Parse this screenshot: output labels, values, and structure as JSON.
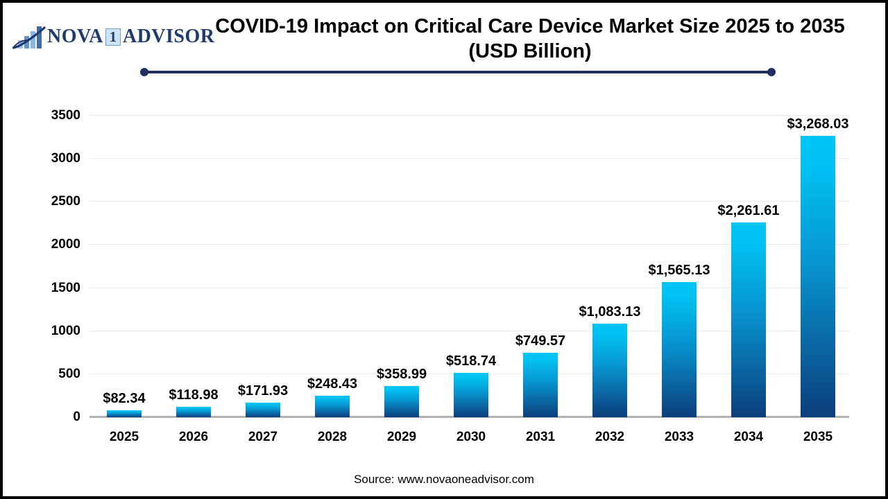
{
  "logo": {
    "icon_name": "bar-chart-swoosh-icon",
    "word1": "NOVA",
    "one_box": "1",
    "word2": "ADVISOR",
    "navy_color": "#1e3a6e",
    "box_bg_color": "#cfe3f6",
    "box_border_color": "#6f9fd0"
  },
  "header": {
    "title": "COVID-19 Impact on Critical Care Device Market Size 2025 to 2035",
    "subtitle": "(USD Billion)",
    "divider_color": "#1f2f5f"
  },
  "chart_data": {
    "type": "bar",
    "title": "COVID-19 Impact on Critical Care Device Market Size 2025 to 2035 (USD Billion)",
    "categories": [
      "2025",
      "2026",
      "2027",
      "2028",
      "2029",
      "2030",
      "2031",
      "2032",
      "2033",
      "2034",
      "2035"
    ],
    "values": [
      82.34,
      118.98,
      171.93,
      248.43,
      358.99,
      518.74,
      749.57,
      1083.13,
      1565.13,
      2261.61,
      3268.03
    ],
    "value_labels": [
      "$82.34",
      "$118.98",
      "$171.93",
      "$248.43",
      "$358.99",
      "$518.74",
      "$749.57",
      "$1,083.13",
      "$1,565.13",
      "$2,261.61",
      "$3,268.03"
    ],
    "xlabel": "",
    "ylabel": "",
    "ylim": [
      0,
      3500
    ],
    "yticks": [
      0,
      500,
      1000,
      1500,
      2000,
      2500,
      3000,
      3500
    ],
    "grid": "horizontal",
    "legend": "none",
    "bar_color_top": "#00c2f3",
    "bar_color_bottom": "#0c3e7c",
    "gridline_color": "#ececec",
    "baseline_color": "#b3b3b3"
  },
  "footer": {
    "source": "Source: www.novaoneadvisor.com"
  }
}
